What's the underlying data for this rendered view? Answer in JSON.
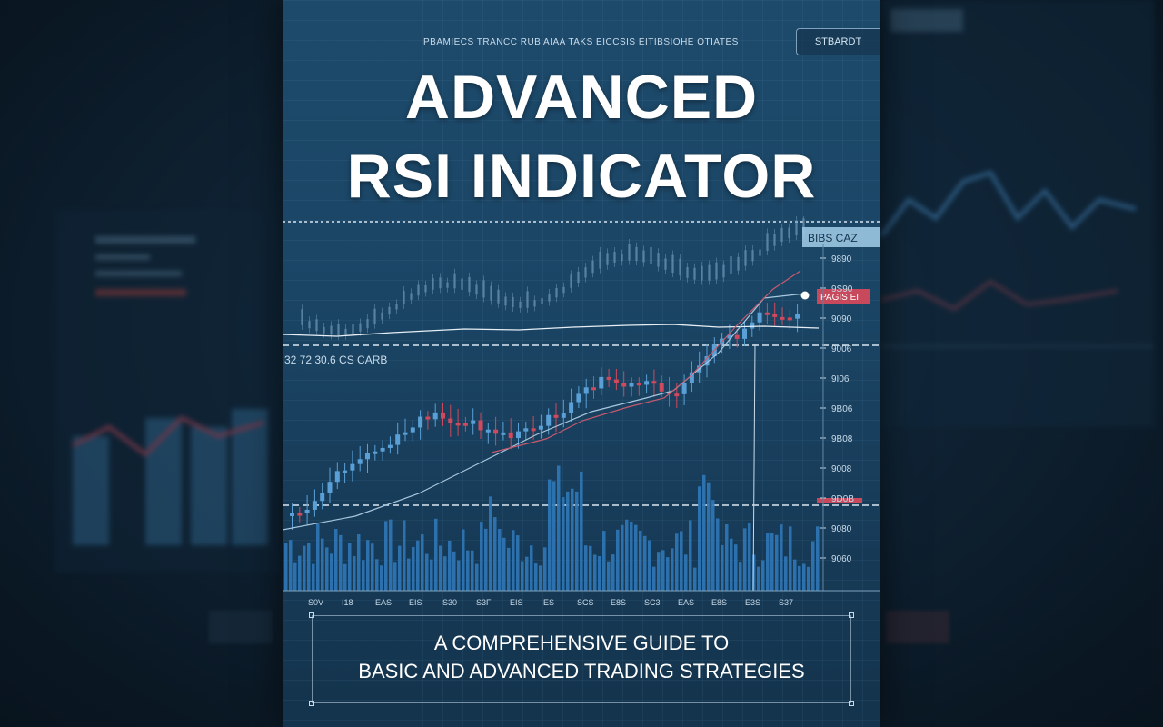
{
  "cover": {
    "topline": "PBAMIECS  TRANCC RUB AIAA TAKS EICCSIS EITIBSIOHE OTIATES",
    "top_button": "STBARDT",
    "title_line1": "ADVANCED",
    "title_line2": "RSI INDICATOR",
    "subtitle_line1": "A COMPREHENSIVE GUIDE TO",
    "subtitle_line2": "BASIC AND ADVANCED TRADING STRATEGIES"
  },
  "chart": {
    "annotation": "32 72 30.6 CS CARB",
    "price_tag_top": "BIBS CAZ",
    "price_tag_mid": "PAGIS EI",
    "y_axis_labels": [
      "9890",
      "9S90",
      "9090",
      "9006",
      "9I06",
      "9B06",
      "9B08",
      "9008",
      "9D0B",
      "9080",
      "9060"
    ],
    "x_axis_labels": [
      "S0V",
      "I18",
      "EAS",
      "EIS",
      "S30",
      "S3F",
      "EIS",
      "ES",
      "SCS",
      "E8S",
      "SC3",
      "EAS",
      "E8S",
      "E3S",
      "S37"
    ]
  },
  "colors": {
    "bull": "#5aa0d6",
    "bear": "#d0495c",
    "volume": "#2f78b8",
    "background": "#1b4565"
  }
}
